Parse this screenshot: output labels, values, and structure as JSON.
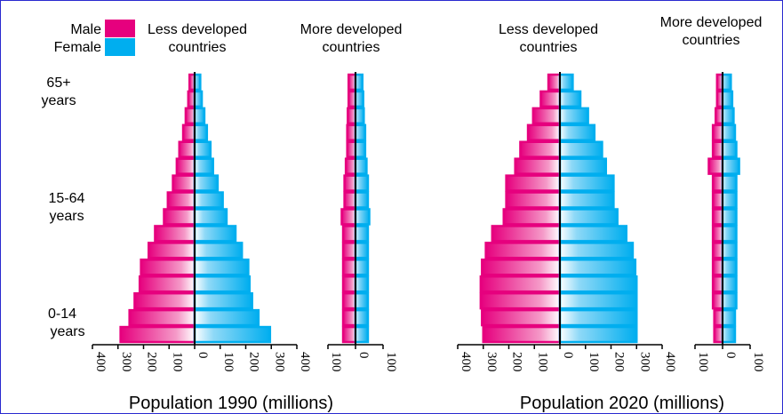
{
  "colors": {
    "male": "#e6007e",
    "female": "#00aeef",
    "axis": "#000000",
    "border": "#2a2ad0"
  },
  "legend": {
    "male": "Male",
    "female": "Female"
  },
  "age_labels": [
    [
      "65+",
      "years"
    ],
    [
      "15-64",
      "years"
    ],
    [
      "0-14",
      "years"
    ]
  ],
  "xlabels": [
    "Population 1990 (millions)",
    "Population 2020 (millions)"
  ],
  "chart_data": [
    {
      "type": "bar",
      "title": [
        "Less developed",
        "countries"
      ],
      "year_label_group": 0,
      "xlim": [
        -400,
        400
      ],
      "ticks": [
        400,
        300,
        200,
        100,
        0,
        100,
        200,
        300,
        400
      ],
      "age_groups": 16,
      "series": [
        {
          "name": "Male",
          "values": [
            290,
            255,
            235,
            215,
            210,
            180,
            155,
            120,
            105,
            85,
            70,
            60,
            45,
            35,
            25,
            20
          ]
        },
        {
          "name": "Female",
          "values": [
            295,
            250,
            225,
            215,
            210,
            185,
            160,
            125,
            110,
            90,
            72,
            62,
            48,
            38,
            28,
            22
          ]
        }
      ]
    },
    {
      "type": "bar",
      "title": [
        "More developed",
        "countries"
      ],
      "year_label_group": 0,
      "xlim": [
        -100,
        100
      ],
      "ticks": [
        100,
        0,
        100
      ],
      "age_groups": 16,
      "series": [
        {
          "name": "Male",
          "values": [
            45,
            45,
            45,
            45,
            45,
            45,
            45,
            50,
            40,
            40,
            35,
            30,
            30,
            28,
            25,
            25
          ]
        },
        {
          "name": "Female",
          "values": [
            45,
            45,
            45,
            45,
            45,
            45,
            45,
            50,
            45,
            45,
            40,
            35,
            35,
            30,
            28,
            25
          ]
        }
      ]
    },
    {
      "type": "bar",
      "title": [
        "Less developed",
        "countries"
      ],
      "year_label_group": 1,
      "xlim": [
        -400,
        400
      ],
      "ticks": [
        400,
        300,
        200,
        100,
        0,
        100,
        200,
        300,
        400
      ],
      "age_groups": 16,
      "series": [
        {
          "name": "Male",
          "values": [
            300,
            305,
            310,
            310,
            305,
            290,
            265,
            220,
            210,
            210,
            175,
            155,
            125,
            105,
            75,
            45
          ]
        },
        {
          "name": "Female",
          "values": [
            300,
            300,
            300,
            300,
            295,
            285,
            260,
            225,
            210,
            210,
            180,
            165,
            135,
            110,
            80,
            50
          ]
        }
      ]
    },
    {
      "type": "bar",
      "title": [
        "More developed",
        "countries"
      ],
      "year_label_group": 1,
      "xlim": [
        -100,
        100
      ],
      "ticks": [
        100,
        0,
        100
      ],
      "age_groups": 16,
      "series": [
        {
          "name": "Male",
          "values": [
            30,
            30,
            35,
            35,
            35,
            35,
            35,
            35,
            35,
            35,
            50,
            35,
            35,
            25,
            20,
            20
          ]
        },
        {
          "name": "Female",
          "values": [
            45,
            45,
            50,
            50,
            50,
            50,
            50,
            50,
            50,
            50,
            60,
            50,
            45,
            40,
            35,
            30
          ]
        }
      ]
    }
  ]
}
